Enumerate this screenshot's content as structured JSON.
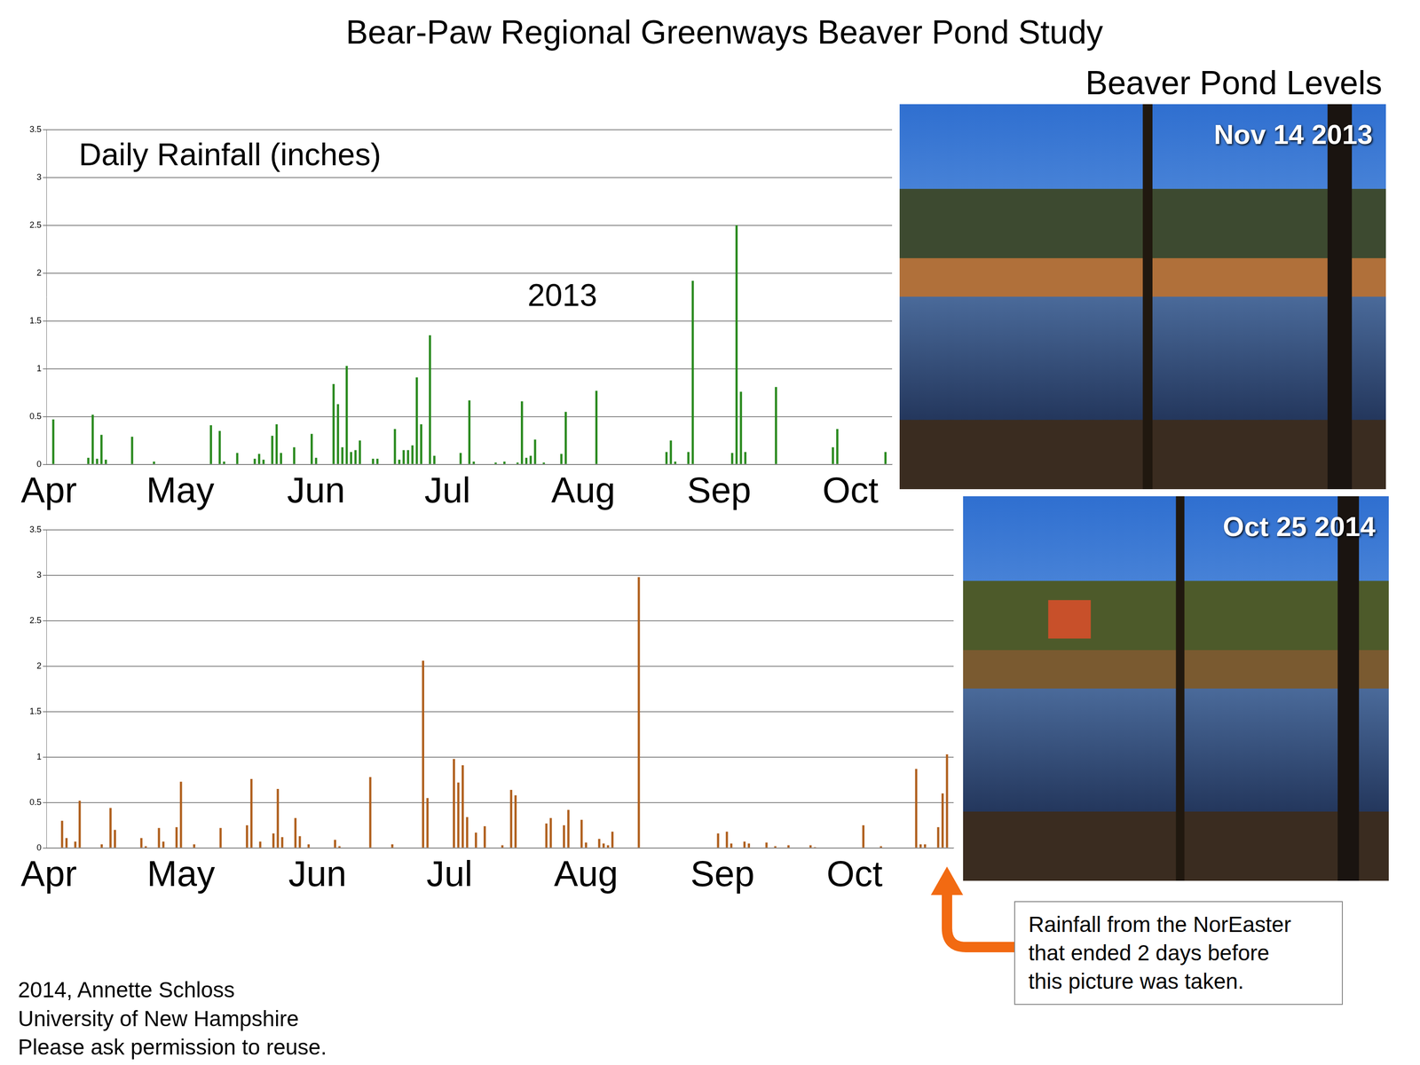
{
  "page": {
    "title": "Bear-Paw Regional Greenways Beaver Pond Study",
    "heading": "Beaver Pond Levels",
    "photos": [
      {
        "label": "Nov 14 2013"
      },
      {
        "label": "Oct 25 2014"
      }
    ],
    "callout": [
      "Rainfall from the NorEaster",
      "that ended 2 days before",
      "this picture was taken."
    ],
    "credit": [
      "2014, Annette Schloss",
      "University of New Hampshire",
      "Please ask permission to reuse."
    ]
  },
  "chart_data": [
    {
      "type": "bar",
      "title": "Daily Rainfall (inches)",
      "subtitle": "2013",
      "categories": [
        "Apr",
        null,
        null,
        null,
        null,
        null,
        null,
        null,
        null,
        null,
        null,
        null,
        null,
        null,
        null,
        null,
        null,
        null,
        null,
        null,
        null,
        null,
        null,
        null,
        null,
        null,
        null,
        null,
        null,
        null,
        "May",
        null,
        null,
        null,
        null,
        null,
        null,
        null,
        null,
        null,
        null,
        null,
        null,
        null,
        null,
        null,
        null,
        null,
        null,
        null,
        null,
        null,
        null,
        null,
        null,
        null,
        null,
        null,
        null,
        null,
        null,
        "Jun",
        null,
        null,
        null,
        null,
        null,
        null,
        null,
        null,
        null,
        null,
        null,
        null,
        null,
        null,
        null,
        null,
        null,
        null,
        null,
        null,
        null,
        null,
        null,
        null,
        null,
        null,
        null,
        null,
        null,
        "Jul",
        null,
        null,
        null,
        null,
        null,
        null,
        null,
        null,
        null,
        null,
        null,
        null,
        null,
        null,
        null,
        null,
        null,
        null,
        null,
        null,
        null,
        null,
        null,
        null,
        null,
        null,
        null,
        null,
        null,
        null,
        "Aug",
        null,
        null,
        null,
        null,
        null,
        null,
        null,
        null,
        null,
        null,
        null,
        null,
        null,
        null,
        null,
        null,
        null,
        null,
        null,
        null,
        null,
        null,
        null,
        null,
        null,
        null,
        null,
        null,
        null,
        null,
        "Sep",
        null,
        null,
        null,
        null,
        null,
        null,
        null,
        null,
        null,
        null,
        null,
        null,
        null,
        null,
        null,
        null,
        null,
        null,
        null,
        null,
        null,
        null,
        null,
        null,
        null,
        null,
        null,
        null,
        null,
        "Oct",
        null,
        null,
        null,
        null,
        null,
        null,
        null,
        null,
        null
      ],
      "values": [
        0,
        0.47,
        0,
        0,
        0,
        0,
        0,
        0,
        0,
        0.07,
        0.52,
        0.06,
        0.31,
        0.05,
        0,
        0,
        0,
        0,
        0,
        0.29,
        0,
        0,
        0,
        0,
        0.03,
        0,
        0,
        0,
        0,
        0,
        0,
        0,
        0,
        0,
        0,
        0,
        0,
        0.41,
        0,
        0.35,
        0.03,
        0,
        0,
        0.12,
        0,
        0,
        0,
        0.06,
        0.11,
        0.05,
        0,
        0.3,
        0.42,
        0.12,
        0,
        0,
        0.18,
        0,
        0,
        0,
        0.32,
        0.07,
        0,
        0,
        0,
        0.84,
        0.63,
        0.18,
        1.03,
        0.13,
        0.15,
        0.25,
        0,
        0,
        0.06,
        0.06,
        0,
        0,
        0,
        0.37,
        0.05,
        0.15,
        0.15,
        0.2,
        0.91,
        0.42,
        0,
        1.35,
        0.09,
        0,
        0,
        0,
        0,
        0,
        0.12,
        0,
        0.67,
        0.03,
        0,
        0,
        0,
        0,
        0.02,
        0,
        0.03,
        0,
        0,
        0.02,
        0.66,
        0.07,
        0.09,
        0.26,
        0,
        0.02,
        0,
        0,
        0,
        0.11,
        0.55,
        0,
        0,
        0,
        0,
        0,
        0,
        0.77,
        0,
        0,
        0,
        0,
        0,
        0,
        0,
        0,
        0,
        0,
        0,
        0,
        0,
        0,
        0,
        0.13,
        0.25,
        0.03,
        0,
        0,
        0.13,
        1.92,
        0,
        0,
        0,
        0,
        0,
        0,
        0,
        0,
        0.12,
        2.5,
        0.76,
        0.13,
        0,
        0,
        0,
        0,
        0,
        0,
        0.81,
        0,
        0,
        0,
        0,
        0,
        0,
        0,
        0,
        0,
        0,
        0,
        0,
        0.18,
        0.37,
        0,
        0,
        0,
        0,
        0,
        0,
        0,
        0,
        0,
        0,
        0.13,
        0
      ],
      "color": "#2a8a1f",
      "ylim": [
        0,
        3.5
      ],
      "yticks": [
        0,
        0.5,
        1,
        1.5,
        2,
        2.5,
        3,
        3.5
      ],
      "grid": true
    },
    {
      "type": "bar",
      "categories": [
        "Apr",
        null,
        null,
        null,
        null,
        null,
        null,
        null,
        null,
        null,
        null,
        null,
        null,
        null,
        null,
        null,
        null,
        null,
        null,
        null,
        null,
        null,
        null,
        null,
        null,
        null,
        null,
        null,
        null,
        null,
        "May",
        null,
        null,
        null,
        null,
        null,
        null,
        null,
        null,
        null,
        null,
        null,
        null,
        null,
        null,
        null,
        null,
        null,
        null,
        null,
        null,
        null,
        null,
        null,
        null,
        null,
        null,
        null,
        null,
        null,
        null,
        "Jun",
        null,
        null,
        null,
        null,
        null,
        null,
        null,
        null,
        null,
        null,
        null,
        null,
        null,
        null,
        null,
        null,
        null,
        null,
        null,
        null,
        null,
        null,
        null,
        null,
        null,
        null,
        null,
        null,
        null,
        "Jul",
        null,
        null,
        null,
        null,
        null,
        null,
        null,
        null,
        null,
        null,
        null,
        null,
        null,
        null,
        null,
        null,
        null,
        null,
        null,
        null,
        null,
        null,
        null,
        null,
        null,
        null,
        null,
        null,
        null,
        null,
        "Aug",
        null,
        null,
        null,
        null,
        null,
        null,
        null,
        null,
        null,
        null,
        null,
        null,
        null,
        null,
        null,
        null,
        null,
        null,
        null,
        null,
        null,
        null,
        null,
        null,
        null,
        null,
        null,
        null,
        null,
        null,
        "Sep",
        null,
        null,
        null,
        null,
        null,
        null,
        null,
        null,
        null,
        null,
        null,
        null,
        null,
        null,
        null,
        null,
        null,
        null,
        null,
        null,
        null,
        null,
        null,
        null,
        null,
        null,
        null,
        null,
        null,
        "Oct",
        null,
        null,
        null,
        null,
        null,
        null,
        null,
        null,
        null,
        null,
        null,
        null,
        null,
        null,
        null,
        null,
        null,
        null,
        null,
        null,
        null,
        null
      ],
      "values": [
        0,
        0,
        0,
        0.3,
        0.11,
        0,
        0.07,
        0.52,
        0,
        0,
        0,
        0,
        0.04,
        0,
        0.44,
        0.2,
        0,
        0,
        0,
        0,
        0,
        0.11,
        0.02,
        0,
        0,
        0.22,
        0.07,
        0,
        0,
        0.23,
        0.73,
        0,
        0,
        0.04,
        0,
        0,
        0,
        0,
        0,
        0.22,
        0,
        0,
        0,
        0,
        0,
        0.25,
        0.76,
        0,
        0.07,
        0,
        0,
        0.16,
        0.65,
        0.12,
        0,
        0,
        0.33,
        0.13,
        0,
        0.04,
        0,
        0,
        0,
        0,
        0,
        0.09,
        0.02,
        0,
        0,
        0,
        0,
        0,
        0,
        0.78,
        0,
        0,
        0,
        0,
        0.04,
        0,
        0,
        0,
        0,
        0,
        0,
        2.06,
        0.55,
        0,
        0,
        0,
        0,
        0,
        0.98,
        0.72,
        0.91,
        0.34,
        0,
        0.17,
        0,
        0.24,
        0,
        0,
        0,
        0.03,
        0,
        0.64,
        0.58,
        0,
        0,
        0,
        0,
        0,
        0,
        0.27,
        0.33,
        0,
        0,
        0.25,
        0.42,
        0,
        0,
        0.31,
        0.06,
        0,
        0,
        0.1,
        0.05,
        0.03,
        0.18,
        0,
        0,
        0,
        0,
        0,
        2.98,
        0,
        0,
        0,
        0,
        0,
        0,
        0,
        0,
        0,
        0,
        0,
        0,
        0,
        0,
        0,
        0,
        0,
        0.16,
        0,
        0.18,
        0.05,
        0,
        0,
        0.07,
        0.05,
        0,
        0,
        0,
        0.06,
        0,
        0.02,
        0,
        0,
        0.03,
        0,
        0,
        0,
        0,
        0.03,
        0.01,
        0,
        0,
        0,
        0,
        0,
        0,
        0,
        0,
        0,
        0,
        0.25,
        0,
        0,
        0,
        0.02,
        0,
        0,
        0,
        0,
        0,
        0,
        0,
        0.87,
        0.04,
        0.04,
        0,
        0,
        0.23,
        0.6,
        1.03,
        0
      ],
      "color": "#b0601e",
      "ylim": [
        0,
        3.5
      ],
      "yticks": [
        0,
        0.5,
        1,
        1.5,
        2,
        2.5,
        3,
        3.5
      ],
      "grid": true
    }
  ]
}
